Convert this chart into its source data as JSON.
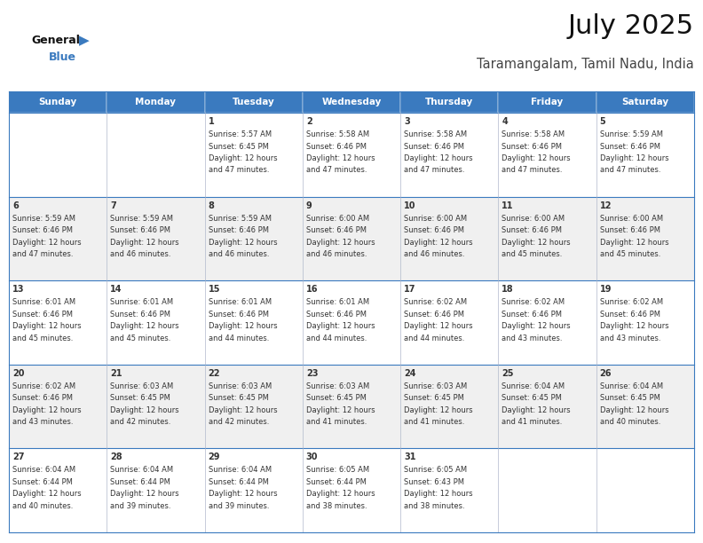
{
  "title": "July 2025",
  "subtitle": "Taramangalam, Tamil Nadu, India",
  "header_color": "#3a7abf",
  "header_text_color": "#ffffff",
  "days_of_week": [
    "Sunday",
    "Monday",
    "Tuesday",
    "Wednesday",
    "Thursday",
    "Friday",
    "Saturday"
  ],
  "bg_color": "#ffffff",
  "alt_row_color": "#f0f0f0",
  "cell_text_color": "#333333",
  "grid_color": "#3a7abf",
  "sep_color": "#aaaacc",
  "calendar_data": [
    [
      {
        "day": "",
        "sunrise": "",
        "sunset": "",
        "daylight": ""
      },
      {
        "day": "",
        "sunrise": "",
        "sunset": "",
        "daylight": ""
      },
      {
        "day": "1",
        "sunrise": "5:57 AM",
        "sunset": "6:45 PM",
        "daylight": "12 hours and 47 minutes."
      },
      {
        "day": "2",
        "sunrise": "5:58 AM",
        "sunset": "6:46 PM",
        "daylight": "12 hours and 47 minutes."
      },
      {
        "day": "3",
        "sunrise": "5:58 AM",
        "sunset": "6:46 PM",
        "daylight": "12 hours and 47 minutes."
      },
      {
        "day": "4",
        "sunrise": "5:58 AM",
        "sunset": "6:46 PM",
        "daylight": "12 hours and 47 minutes."
      },
      {
        "day": "5",
        "sunrise": "5:59 AM",
        "sunset": "6:46 PM",
        "daylight": "12 hours and 47 minutes."
      }
    ],
    [
      {
        "day": "6",
        "sunrise": "5:59 AM",
        "sunset": "6:46 PM",
        "daylight": "12 hours and 47 minutes."
      },
      {
        "day": "7",
        "sunrise": "5:59 AM",
        "sunset": "6:46 PM",
        "daylight": "12 hours and 46 minutes."
      },
      {
        "day": "8",
        "sunrise": "5:59 AM",
        "sunset": "6:46 PM",
        "daylight": "12 hours and 46 minutes."
      },
      {
        "day": "9",
        "sunrise": "6:00 AM",
        "sunset": "6:46 PM",
        "daylight": "12 hours and 46 minutes."
      },
      {
        "day": "10",
        "sunrise": "6:00 AM",
        "sunset": "6:46 PM",
        "daylight": "12 hours and 46 minutes."
      },
      {
        "day": "11",
        "sunrise": "6:00 AM",
        "sunset": "6:46 PM",
        "daylight": "12 hours and 45 minutes."
      },
      {
        "day": "12",
        "sunrise": "6:00 AM",
        "sunset": "6:46 PM",
        "daylight": "12 hours and 45 minutes."
      }
    ],
    [
      {
        "day": "13",
        "sunrise": "6:01 AM",
        "sunset": "6:46 PM",
        "daylight": "12 hours and 45 minutes."
      },
      {
        "day": "14",
        "sunrise": "6:01 AM",
        "sunset": "6:46 PM",
        "daylight": "12 hours and 45 minutes."
      },
      {
        "day": "15",
        "sunrise": "6:01 AM",
        "sunset": "6:46 PM",
        "daylight": "12 hours and 44 minutes."
      },
      {
        "day": "16",
        "sunrise": "6:01 AM",
        "sunset": "6:46 PM",
        "daylight": "12 hours and 44 minutes."
      },
      {
        "day": "17",
        "sunrise": "6:02 AM",
        "sunset": "6:46 PM",
        "daylight": "12 hours and 44 minutes."
      },
      {
        "day": "18",
        "sunrise": "6:02 AM",
        "sunset": "6:46 PM",
        "daylight": "12 hours and 43 minutes."
      },
      {
        "day": "19",
        "sunrise": "6:02 AM",
        "sunset": "6:46 PM",
        "daylight": "12 hours and 43 minutes."
      }
    ],
    [
      {
        "day": "20",
        "sunrise": "6:02 AM",
        "sunset": "6:46 PM",
        "daylight": "12 hours and 43 minutes."
      },
      {
        "day": "21",
        "sunrise": "6:03 AM",
        "sunset": "6:45 PM",
        "daylight": "12 hours and 42 minutes."
      },
      {
        "day": "22",
        "sunrise": "6:03 AM",
        "sunset": "6:45 PM",
        "daylight": "12 hours and 42 minutes."
      },
      {
        "day": "23",
        "sunrise": "6:03 AM",
        "sunset": "6:45 PM",
        "daylight": "12 hours and 41 minutes."
      },
      {
        "day": "24",
        "sunrise": "6:03 AM",
        "sunset": "6:45 PM",
        "daylight": "12 hours and 41 minutes."
      },
      {
        "day": "25",
        "sunrise": "6:04 AM",
        "sunset": "6:45 PM",
        "daylight": "12 hours and 41 minutes."
      },
      {
        "day": "26",
        "sunrise": "6:04 AM",
        "sunset": "6:45 PM",
        "daylight": "12 hours and 40 minutes."
      }
    ],
    [
      {
        "day": "27",
        "sunrise": "6:04 AM",
        "sunset": "6:44 PM",
        "daylight": "12 hours and 40 minutes."
      },
      {
        "day": "28",
        "sunrise": "6:04 AM",
        "sunset": "6:44 PM",
        "daylight": "12 hours and 39 minutes."
      },
      {
        "day": "29",
        "sunrise": "6:04 AM",
        "sunset": "6:44 PM",
        "daylight": "12 hours and 39 minutes."
      },
      {
        "day": "30",
        "sunrise": "6:05 AM",
        "sunset": "6:44 PM",
        "daylight": "12 hours and 38 minutes."
      },
      {
        "day": "31",
        "sunrise": "6:05 AM",
        "sunset": "6:43 PM",
        "daylight": "12 hours and 38 minutes."
      },
      {
        "day": "",
        "sunrise": "",
        "sunset": "",
        "daylight": ""
      },
      {
        "day": "",
        "sunrise": "",
        "sunset": "",
        "daylight": ""
      }
    ]
  ]
}
